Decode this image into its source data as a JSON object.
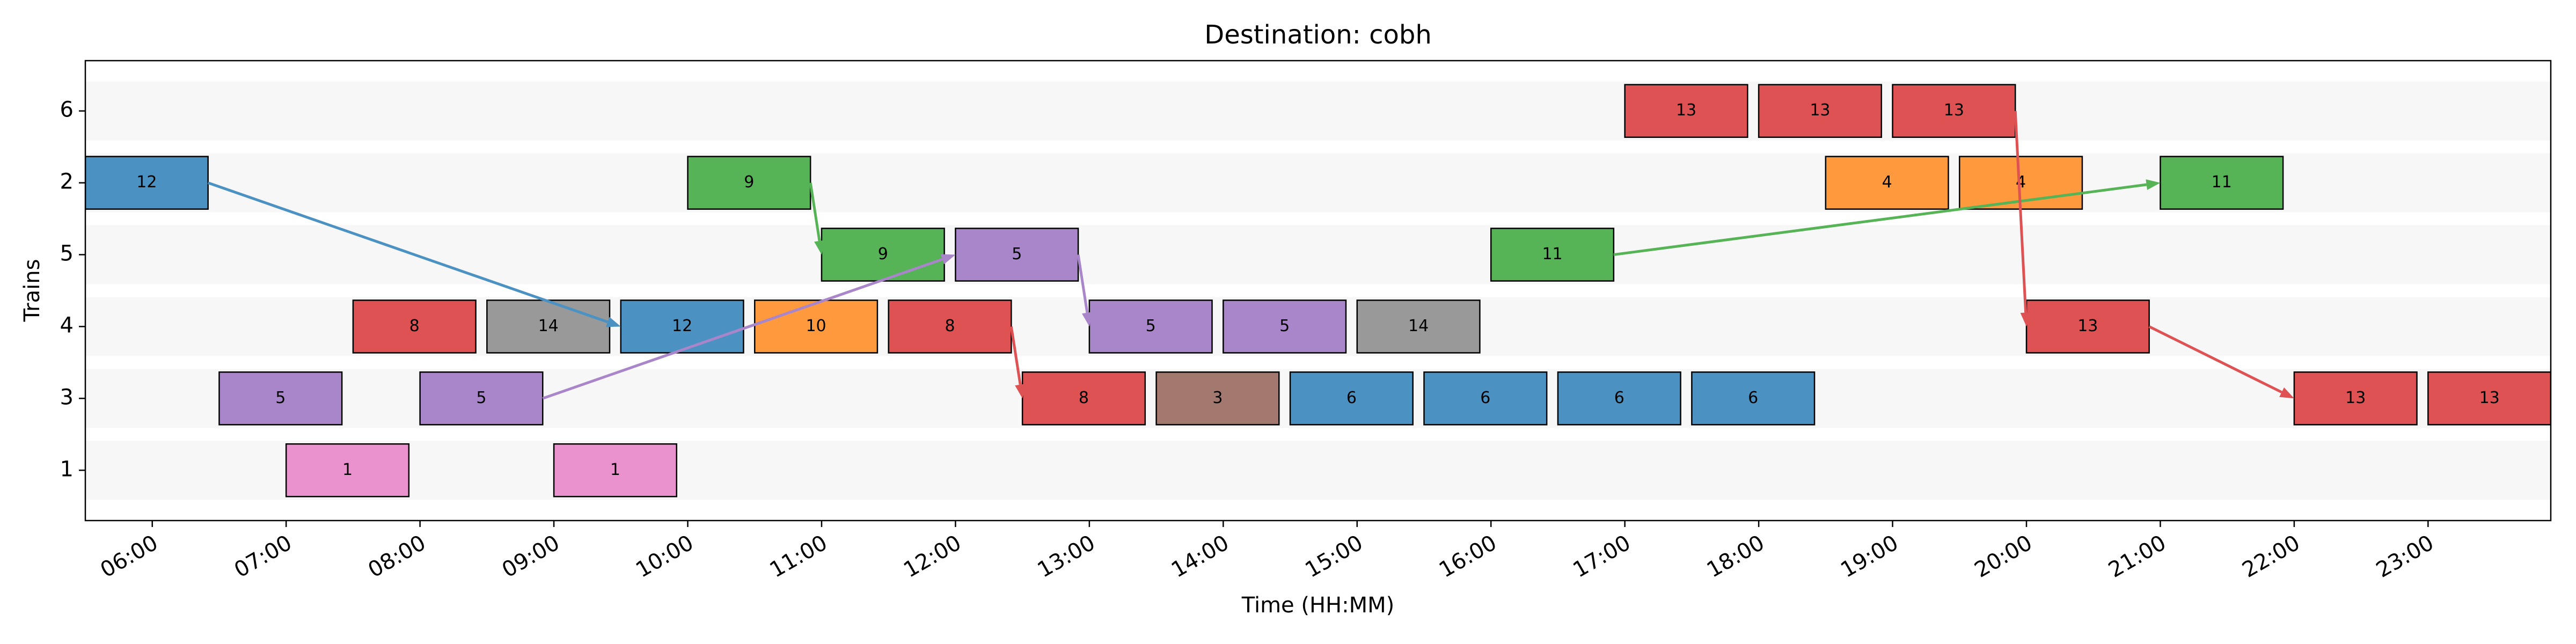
{
  "chart_data": {
    "type": "gantt",
    "title": "Destination: cobh",
    "x_label": "Time (HH:MM)",
    "y_label": "Trains",
    "categories": [
      "1",
      "3",
      "4",
      "5",
      "2",
      "6"
    ],
    "xlim": [
      "05:30",
      "23:55"
    ],
    "xticks": [
      "06:00",
      "07:00",
      "08:00",
      "09:00",
      "10:00",
      "11:00",
      "12:00",
      "13:00",
      "14:00",
      "15:00",
      "16:00",
      "17:00",
      "18:00",
      "19:00",
      "20:00",
      "21:00",
      "22:00",
      "23:00"
    ],
    "bars": [
      {
        "row": "2",
        "label": "12",
        "start": "05:30",
        "end": "06:25",
        "color": "#4b92c3"
      },
      {
        "row": "2",
        "label": "9",
        "start": "10:00",
        "end": "10:55",
        "color": "#56b356"
      },
      {
        "row": "2",
        "label": "4",
        "start": "18:30",
        "end": "19:25",
        "color": "#ff993e"
      },
      {
        "row": "2",
        "label": "4",
        "start": "19:30",
        "end": "20:25",
        "color": "#ff993e"
      },
      {
        "row": "2",
        "label": "11",
        "start": "21:00",
        "end": "21:55",
        "color": "#56b356"
      },
      {
        "row": "6",
        "label": "13",
        "start": "17:00",
        "end": "17:55",
        "color": "#de5253"
      },
      {
        "row": "6",
        "label": "13",
        "start": "18:00",
        "end": "18:55",
        "color": "#de5253"
      },
      {
        "row": "6",
        "label": "13",
        "start": "19:00",
        "end": "19:55",
        "color": "#de5253"
      },
      {
        "row": "5",
        "label": "9",
        "start": "11:00",
        "end": "11:55",
        "color": "#56b356"
      },
      {
        "row": "5",
        "label": "5",
        "start": "12:00",
        "end": "12:55",
        "color": "#a985ca"
      },
      {
        "row": "5",
        "label": "11",
        "start": "16:00",
        "end": "16:55",
        "color": "#56b356"
      },
      {
        "row": "4",
        "label": "8",
        "start": "07:30",
        "end": "08:25",
        "color": "#de5253"
      },
      {
        "row": "4",
        "label": "14",
        "start": "08:30",
        "end": "09:25",
        "color": "#999999"
      },
      {
        "row": "4",
        "label": "12",
        "start": "09:30",
        "end": "10:25",
        "color": "#4b92c3"
      },
      {
        "row": "4",
        "label": "10",
        "start": "10:30",
        "end": "11:25",
        "color": "#ff993e"
      },
      {
        "row": "4",
        "label": "8",
        "start": "11:30",
        "end": "12:25",
        "color": "#de5253"
      },
      {
        "row": "4",
        "label": "5",
        "start": "13:00",
        "end": "13:55",
        "color": "#a985ca"
      },
      {
        "row": "4",
        "label": "5",
        "start": "14:00",
        "end": "14:55",
        "color": "#a985ca"
      },
      {
        "row": "4",
        "label": "14",
        "start": "15:00",
        "end": "15:55",
        "color": "#999999"
      },
      {
        "row": "4",
        "label": "13",
        "start": "20:00",
        "end": "20:55",
        "color": "#de5253"
      },
      {
        "row": "3",
        "label": "5",
        "start": "06:30",
        "end": "07:25",
        "color": "#a985ca"
      },
      {
        "row": "3",
        "label": "5",
        "start": "08:00",
        "end": "08:55",
        "color": "#a985ca"
      },
      {
        "row": "3",
        "label": "8",
        "start": "12:30",
        "end": "13:25",
        "color": "#de5253"
      },
      {
        "row": "3",
        "label": "3",
        "start": "13:30",
        "end": "14:25",
        "color": "#a3786f"
      },
      {
        "row": "3",
        "label": "6",
        "start": "14:30",
        "end": "15:25",
        "color": "#4b92c3"
      },
      {
        "row": "3",
        "label": "6",
        "start": "15:30",
        "end": "16:25",
        "color": "#4b92c3"
      },
      {
        "row": "3",
        "label": "6",
        "start": "16:30",
        "end": "17:25",
        "color": "#4b92c3"
      },
      {
        "row": "3",
        "label": "6",
        "start": "17:30",
        "end": "18:25",
        "color": "#4b92c3"
      },
      {
        "row": "3",
        "label": "13",
        "start": "22:00",
        "end": "22:55",
        "color": "#de5253"
      },
      {
        "row": "3",
        "label": "13",
        "start": "23:00",
        "end": "23:55",
        "color": "#de5253"
      },
      {
        "row": "1",
        "label": "1",
        "start": "07:00",
        "end": "07:55",
        "color": "#e992ce"
      },
      {
        "row": "1",
        "label": "1",
        "start": "09:00",
        "end": "09:55",
        "color": "#e992ce"
      }
    ],
    "links": [
      [
        0,
        13
      ],
      [
        1,
        8
      ],
      [
        21,
        9
      ],
      [
        9,
        16
      ],
      [
        15,
        22
      ],
      [
        10,
        4
      ],
      [
        7,
        19
      ],
      [
        19,
        28
      ]
    ]
  }
}
